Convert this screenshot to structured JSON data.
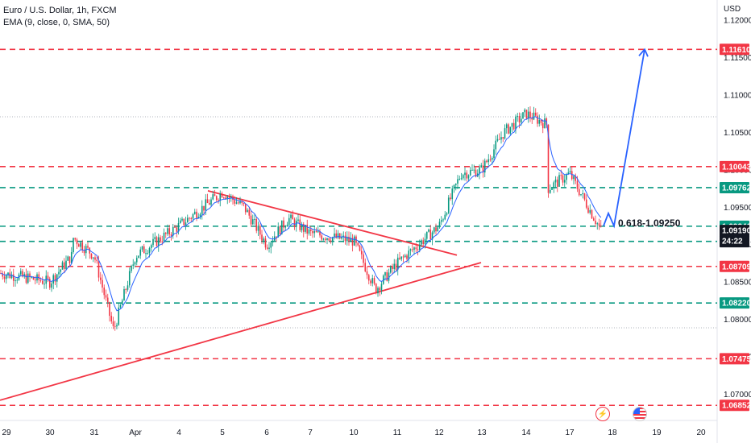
{
  "legend": {
    "title": "Euro / U.S. Dollar, 1h, FXCM",
    "indicator": "EMA (9, close, 0, SMA, 50)"
  },
  "axis": {
    "currency": "USD",
    "y_ticks": [
      "1.12000",
      "1.11500",
      "1.11000",
      "1.10500",
      "1.10000",
      "1.09500",
      "1.09000",
      "1.08500",
      "1.08000",
      "1.07500",
      "1.07000"
    ],
    "x_ticks": [
      "29",
      "30",
      "31",
      "Apr",
      "4",
      "5",
      "6",
      "7",
      "10",
      "11",
      "12",
      "13",
      "14",
      "17",
      "18",
      "19",
      "20"
    ]
  },
  "levels": [
    {
      "value": "1.11610",
      "color": "#f23645",
      "kind": "resistance"
    },
    {
      "value": "1.10043",
      "color": "#f23645",
      "kind": "resistance"
    },
    {
      "value": "1.09762",
      "color": "#089981",
      "kind": "support"
    },
    {
      "value": "1.09246",
      "color": "#089981",
      "kind": "support"
    },
    {
      "value": "1.09044",
      "color": "#089981",
      "kind": "support"
    },
    {
      "value": "1.08709",
      "color": "#f23645",
      "kind": "resistance"
    },
    {
      "value": "1.08220",
      "color": "#089981",
      "kind": "support"
    },
    {
      "value": "1.07475",
      "color": "#f23645",
      "kind": "resistance"
    },
    {
      "value": "1.06852",
      "color": "#f23645",
      "kind": "resistance"
    }
  ],
  "current_price": {
    "value": "1.09190",
    "countdown": "24:22",
    "color": "#131722"
  },
  "annotation": "0.618-1.09250",
  "colors": {
    "up": "#089981",
    "down": "#f23645",
    "ema": "#2962ff",
    "projection": "#2962ff",
    "trendline": "#f23645"
  },
  "icons": [
    "lightning-event-icon",
    "us-flag-event-icon"
  ],
  "chart_data": {
    "type": "candlestick",
    "title": "Euro / U.S. Dollar, 1h, FXCM",
    "ylabel": "USD",
    "ylim": [
      1.0665,
      1.1227
    ],
    "x_range_days": [
      "Mar 29",
      "Apr 20"
    ],
    "series": [
      {
        "name": "EUR/USD",
        "path": [
          [
            "Mar 29",
            1.0862
          ],
          [
            "Mar 30",
            1.085
          ],
          [
            "Mar 30 pm",
            1.0885
          ],
          [
            "Mar 31 am",
            1.091
          ],
          [
            "Mar 31",
            1.0885
          ],
          [
            "Apr 3 am",
            1.0785
          ],
          [
            "Apr 3",
            1.0885
          ],
          [
            "Apr 4",
            1.0925
          ],
          [
            "Apr 5",
            1.097
          ],
          [
            "Apr 5 pm",
            1.095
          ],
          [
            "Apr 6",
            1.09
          ],
          [
            "Apr 6 pm",
            1.0935
          ],
          [
            "Apr 7",
            1.0915
          ],
          [
            "Apr 10",
            1.0905
          ],
          [
            "Apr 10 pm",
            1.084
          ],
          [
            "Apr 11",
            1.0875
          ],
          [
            "Apr 12",
            1.0925
          ],
          [
            "Apr 12 pm",
            1.0995
          ],
          [
            "Apr 13",
            1.1
          ],
          [
            "Apr 13 pm",
            1.105
          ],
          [
            "Apr 14",
            1.1075
          ],
          [
            "Apr 14 pm",
            1.106
          ],
          [
            "Apr 17 am",
            1.0975
          ],
          [
            "Apr 17",
            1.0995
          ],
          [
            "Apr 17 pm",
            1.0919
          ]
        ]
      },
      {
        "name": "EMA (9, close, 0, SMA, 50)"
      }
    ],
    "trendlines": [
      {
        "from": [
          "Apr 4",
          1.0972
        ],
        "to": [
          "Apr 12",
          1.0886
        ]
      },
      {
        "from": [
          "Mar 29",
          1.0692
        ],
        "to": [
          "Apr 12",
          1.0876
        ]
      }
    ],
    "projection": {
      "from": [
        "Apr 17",
        1.0919
      ],
      "to": [
        "Apr 18",
        1.1161
      ]
    },
    "grid": true
  }
}
